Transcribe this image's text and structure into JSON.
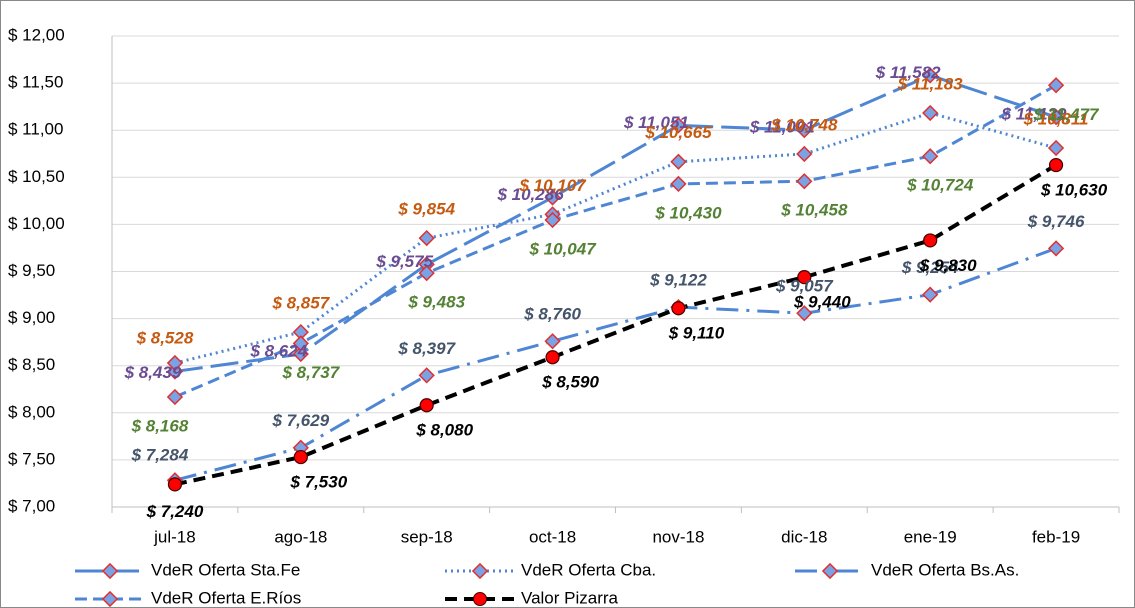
{
  "chart_data": {
    "type": "line",
    "categories": [
      "jul-18",
      "ago-18",
      "sep-18",
      "oct-18",
      "nov-18",
      "dic-18",
      "ene-19",
      "feb-19"
    ],
    "series": [
      {
        "name": "VdeR Oferta Sta.Fe",
        "color": "#4f86d4",
        "label_color": "#6a4c93",
        "style": "long-dash",
        "values": [
          8.439,
          8.624,
          9.575,
          10.286,
          11.051,
          11.001,
          11.582,
          11.139
        ],
        "value_labels": [
          "$ 8,439",
          "$ 8,624",
          "$ 9,575",
          "$ 10,286",
          "$ 11,051",
          "$ 11,001",
          "$ 11,582",
          "$ 11,139"
        ]
      },
      {
        "name": "VdeR Oferta Cba.",
        "color": "#4f86d4",
        "label_color": "#c55a11",
        "style": "dotted",
        "values": [
          8.528,
          8.857,
          9.854,
          10.107,
          10.665,
          10.748,
          11.183,
          10.811
        ],
        "value_labels": [
          "$ 8,528",
          "$ 8,857",
          "$ 9,854",
          "$ 10,107",
          "$ 10,665",
          "$ 10,748",
          "$ 11,183",
          "$ 10,811"
        ]
      },
      {
        "name": "VdeR Oferta Bs.As.",
        "color": "#4f86d4",
        "label_color": "#44546a",
        "style": "dash-dot",
        "values": [
          7.284,
          7.629,
          8.397,
          8.76,
          9.122,
          9.057,
          9.254,
          9.746
        ],
        "value_labels": [
          "$ 7,284",
          "$ 7,629",
          "$ 8,397",
          "$ 8,760",
          "$ 9,122",
          "$ 9,057",
          "$ 9,254",
          "$ 9,746"
        ]
      },
      {
        "name": "VdeR Oferta E.Ríos",
        "color": "#4f86d4",
        "label_color": "#548235",
        "style": "dashed",
        "values": [
          8.168,
          8.737,
          9.483,
          10.047,
          10.43,
          10.458,
          10.724,
          11.477
        ],
        "value_labels": [
          "$ 8,168",
          "$ 8,737",
          "$ 9,483",
          "$ 10,047",
          "$ 10,430",
          "$ 10,458",
          "$ 10,724",
          "$ 11,477"
        ]
      },
      {
        "name": "Valor Pizarra",
        "color": "#000000",
        "label_color": "#000000",
        "style": "bold-dashed",
        "values": [
          7.24,
          7.53,
          8.08,
          8.59,
          9.11,
          9.44,
          9.83,
          10.63
        ],
        "value_labels": [
          "$ 7,240",
          "$ 7,530",
          "$ 8,080",
          "$ 8,590",
          "$ 9,110",
          "$ 9,440",
          "$ 9,830",
          "$ 10,630"
        ]
      }
    ],
    "ylim": [
      7,
      12
    ],
    "yticks": [
      {
        "value": 7,
        "label": "$ 7,00"
      },
      {
        "value": 7.5,
        "label": "$ 7,50"
      },
      {
        "value": 8,
        "label": "$ 8,00"
      },
      {
        "value": 8.5,
        "label": "$ 8,50"
      },
      {
        "value": 9,
        "label": "$ 9,00"
      },
      {
        "value": 9.5,
        "label": "$ 9,50"
      },
      {
        "value": 10,
        "label": "$ 10,00"
      },
      {
        "value": 10.5,
        "label": "$ 10,50"
      },
      {
        "value": 11,
        "label": "$ 11,00"
      },
      {
        "value": 11.5,
        "label": "$ 11,50"
      },
      {
        "value": 12,
        "label": "$ 12,00"
      }
    ],
    "grid": true,
    "legend": "bottom"
  }
}
